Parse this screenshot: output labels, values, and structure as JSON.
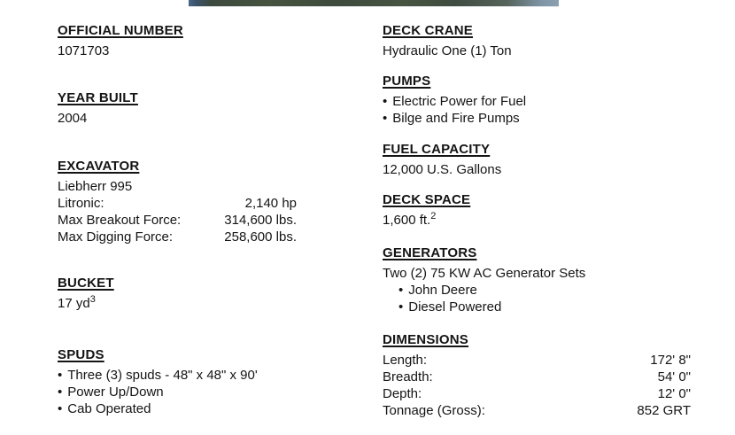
{
  "photo_strip": {
    "colors": [
      "#47658a",
      "#3e4b3d",
      "#485442",
      "#8ba1b1"
    ]
  },
  "left": {
    "official_number": {
      "heading": "OFFICIAL NUMBER",
      "value": "1071703"
    },
    "year_built": {
      "heading": "YEAR BUILT",
      "value": "2004"
    },
    "excavator": {
      "heading": "EXCAVATOR",
      "model": "Liebherr 995",
      "rows": [
        {
          "label": "Litronic:",
          "value": "2,140 hp"
        },
        {
          "label": "Max Breakout Force:",
          "value": "314,600 lbs."
        },
        {
          "label": "Max Digging Force:",
          "value": "258,600 lbs."
        }
      ]
    },
    "bucket": {
      "heading": "BUCKET",
      "value": "17 yd",
      "value_sup": "3"
    },
    "spuds": {
      "heading": "SPUDS",
      "bullet": "•",
      "items": [
        "Three (3) spuds - 48\" x 48\" x 90'",
        "Power Up/Down",
        "Cab Operated"
      ]
    }
  },
  "right": {
    "deck_crane": {
      "heading": "DECK CRANE",
      "value": "Hydraulic One (1) Ton"
    },
    "pumps": {
      "heading": "PUMPS",
      "bullet": "•",
      "items": [
        "Electric Power for Fuel",
        "Bilge and Fire Pumps"
      ]
    },
    "fuel_capacity": {
      "heading": "FUEL CAPACITY",
      "value": "12,000 U.S. Gallons"
    },
    "deck_space": {
      "heading": "DECK SPACE",
      "value": "1,600 ft.",
      "value_sup": "2"
    },
    "generators": {
      "heading": "GENERATORS",
      "value": "Two (2) 75 KW AC Generator Sets",
      "bullet": "•",
      "items": [
        "John Deere",
        "Diesel Powered"
      ]
    },
    "dimensions": {
      "heading": "DIMENSIONS",
      "rows": [
        {
          "label": "Length:",
          "value": "172' 8\""
        },
        {
          "label": "Breadth:",
          "value": "54' 0\""
        },
        {
          "label": "Depth:",
          "value": "12' 0\""
        },
        {
          "label": "Tonnage (Gross):",
          "value": "852 GRT"
        }
      ]
    }
  }
}
